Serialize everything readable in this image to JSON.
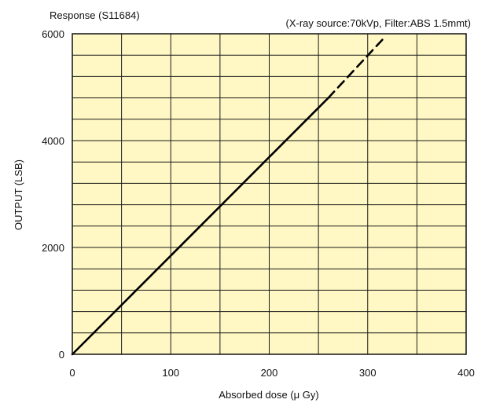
{
  "chart_data": {
    "type": "line",
    "title": "Response (S11684)",
    "subtitle": "(X-ray source:70kVp, Filter:ABS 1.5mmt)",
    "xlabel": "Absorbed dose (μ Gy)",
    "ylabel": "OUTPUT (LSB)",
    "xlim": [
      0,
      400
    ],
    "ylim": [
      0,
      6000
    ],
    "x_ticks": [
      "0",
      "100",
      "200",
      "300",
      "400"
    ],
    "y_ticks": [
      "0",
      "2000",
      "4000",
      "6000"
    ],
    "grid": true,
    "minor_x_step": 50,
    "minor_y_step": 400,
    "series": [
      {
        "style": "solid",
        "x": [
          0,
          260
        ],
        "y": [
          0,
          4800
        ]
      },
      {
        "style": "dashed",
        "x": [
          260,
          318
        ],
        "y": [
          4800,
          5950
        ]
      }
    ],
    "colors": {
      "plot_background": "#fff8c4",
      "grid": "#1a1a1a",
      "line": "#000000"
    }
  }
}
